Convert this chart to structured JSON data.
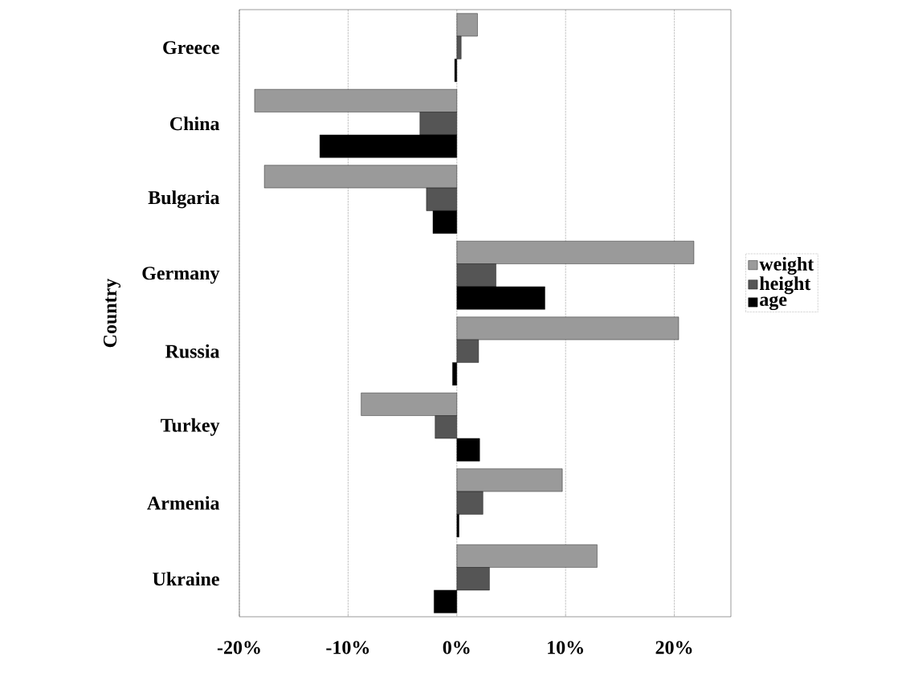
{
  "chart_data": {
    "type": "bar",
    "orientation": "horizontal",
    "ylabel": "Country",
    "categories": [
      "Greece",
      "China",
      "Bulgaria",
      "Germany",
      "Russia",
      "Turkey",
      "Armenia",
      "Ukraine"
    ],
    "series": [
      {
        "name": "weight",
        "color": "#9a9a9a",
        "values": [
          1.9,
          -18.6,
          -17.7,
          21.8,
          20.4,
          -8.8,
          9.7,
          12.9
        ]
      },
      {
        "name": "height",
        "color": "#555555",
        "values": [
          0.4,
          -3.4,
          -2.8,
          3.6,
          2.0,
          -2.0,
          2.4,
          3.0
        ]
      },
      {
        "name": "age",
        "color": "#000000",
        "values": [
          -0.2,
          -12.6,
          -2.2,
          8.1,
          -0.4,
          2.1,
          0.2,
          -2.1
        ]
      }
    ],
    "xlim": [
      -20,
      25.2
    ],
    "xticks": [
      {
        "value": -20,
        "label": "-20%"
      },
      {
        "value": -10,
        "label": "-10%"
      },
      {
        "value": 0,
        "label": "0%"
      },
      {
        "value": 10,
        "label": "10%"
      },
      {
        "value": 20,
        "label": "20%"
      }
    ],
    "grid": "x",
    "legend": "right"
  }
}
